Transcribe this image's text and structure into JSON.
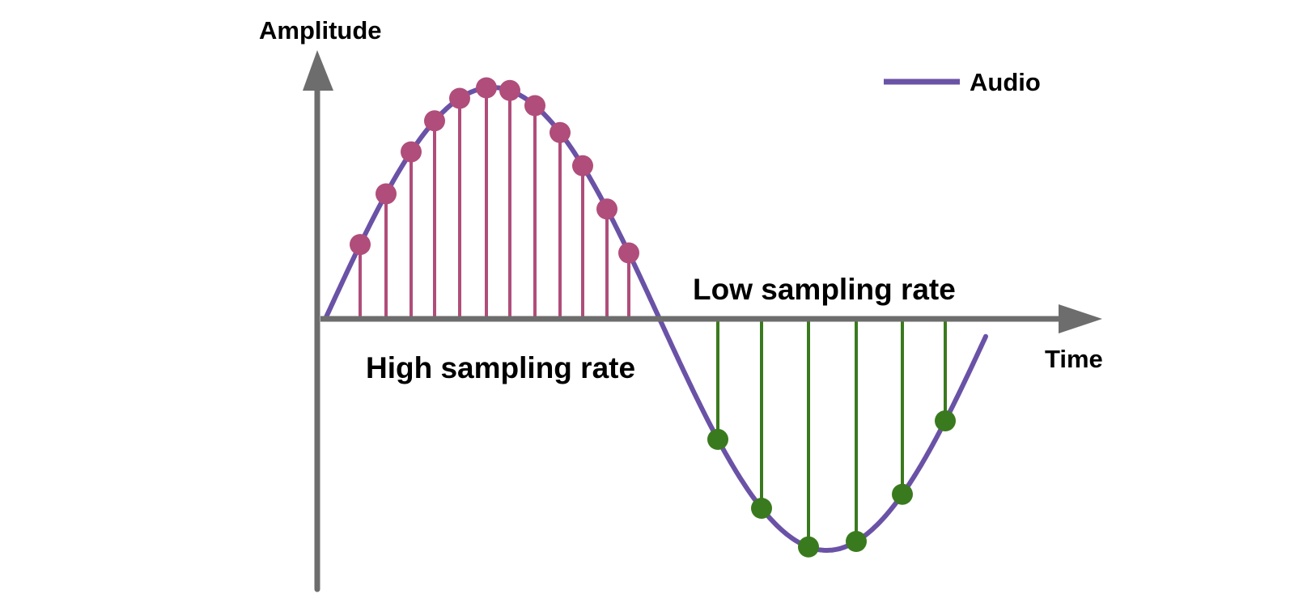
{
  "diagram": {
    "y_axis_label": "Amplitude",
    "x_axis_label": "Time",
    "legend_label": "Audio",
    "high_rate_label": "High sampling rate",
    "low_rate_label": "Low sampling rate"
  },
  "colors": {
    "axis": "#6d6d6d",
    "audio": "#6a52a6",
    "high_samples": "#b04d7a",
    "low_samples": "#3a7a1e",
    "text": "#000000"
  },
  "icons": {
    "y_arrow": "arrow-up-icon",
    "x_arrow": "arrow-right-icon"
  }
}
